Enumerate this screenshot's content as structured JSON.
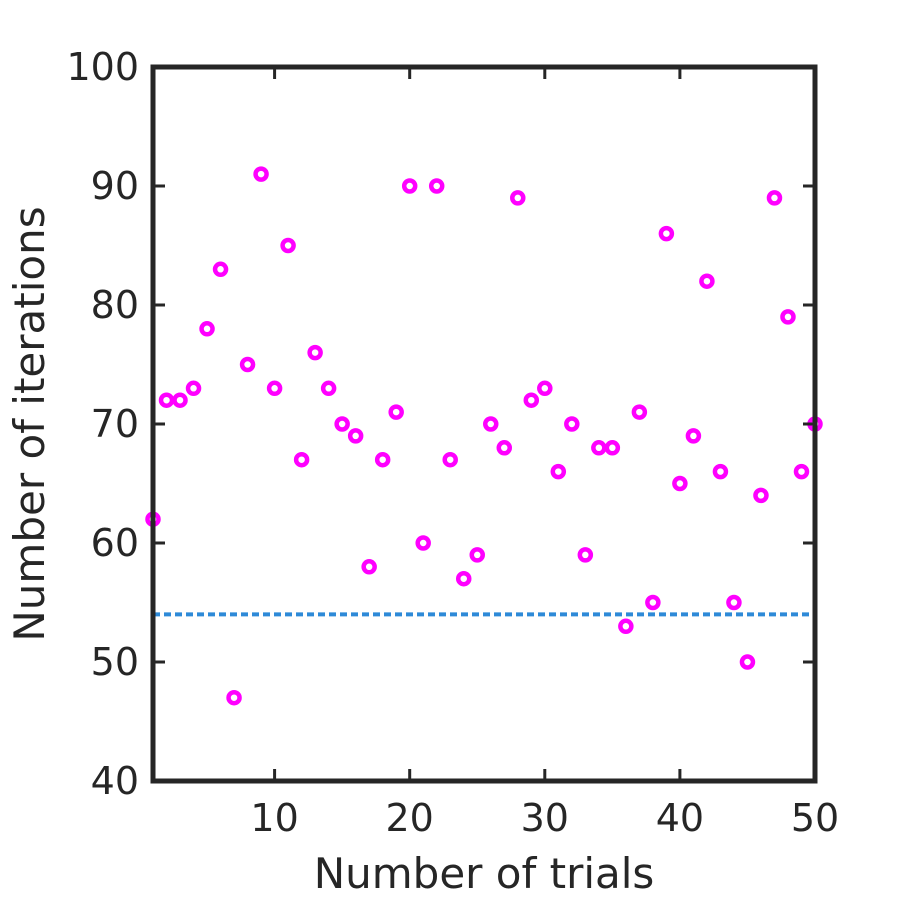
{
  "chart_data": {
    "type": "scatter",
    "title": "",
    "xlabel": "Number of trials",
    "ylabel": "Number of iterations",
    "xlim": [
      1,
      50
    ],
    "ylim": [
      40,
      100
    ],
    "x_ticks": [
      10,
      20,
      30,
      40,
      50
    ],
    "y_ticks": [
      40,
      50,
      60,
      70,
      80,
      90,
      100
    ],
    "grid": false,
    "legend": "none",
    "series": [
      {
        "color": "#ff00ff",
        "marker": "circle",
        "x": [
          1,
          2,
          3,
          4,
          5,
          6,
          7,
          8,
          9,
          10,
          11,
          12,
          13,
          14,
          15,
          16,
          17,
          18,
          19,
          20,
          21,
          22,
          23,
          24,
          25,
          26,
          27,
          28,
          29,
          30,
          31,
          32,
          33,
          34,
          35,
          36,
          37,
          38,
          39,
          40,
          41,
          42,
          43,
          44,
          45,
          46,
          47,
          48,
          49,
          50
        ],
        "y": [
          62,
          72,
          72,
          73,
          78,
          83,
          47,
          75,
          91,
          73,
          85,
          67,
          76,
          73,
          70,
          69,
          58,
          67,
          71,
          90,
          60,
          90,
          67,
          57,
          59,
          70,
          68,
          89,
          72,
          73,
          66,
          70,
          59,
          68,
          68,
          53,
          71,
          55,
          86,
          65,
          69,
          82,
          66,
          55,
          50,
          64,
          89,
          79,
          66,
          70
        ]
      }
    ],
    "reference_lines": [
      {
        "orientation": "horizontal",
        "y": 54,
        "style": "dotted",
        "color": "#2e8ad8"
      }
    ]
  }
}
